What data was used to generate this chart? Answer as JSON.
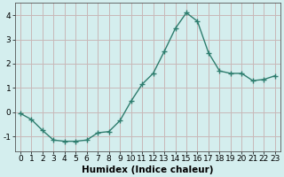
{
  "x": [
    0,
    1,
    2,
    3,
    4,
    5,
    6,
    7,
    8,
    9,
    10,
    11,
    12,
    13,
    14,
    15,
    16,
    17,
    18,
    19,
    20,
    21,
    22,
    23
  ],
  "y": [
    -0.05,
    -0.3,
    -0.75,
    -1.15,
    -1.2,
    -1.2,
    -1.15,
    -0.85,
    -0.8,
    -0.35,
    0.45,
    1.15,
    1.6,
    2.5,
    3.45,
    4.1,
    3.75,
    2.45,
    1.7,
    1.6,
    1.6,
    1.3,
    1.35,
    1.5
  ],
  "line_color": "#2e7d6e",
  "marker": "+",
  "marker_size": 4,
  "linewidth": 1.0,
  "xlabel": "Humidex (Indice chaleur)",
  "xlim": [
    -0.5,
    23.5
  ],
  "ylim": [
    -1.6,
    4.5
  ],
  "yticks": [
    -1,
    0,
    1,
    2,
    3,
    4
  ],
  "xticks": [
    0,
    1,
    2,
    3,
    4,
    5,
    6,
    7,
    8,
    9,
    10,
    11,
    12,
    13,
    14,
    15,
    16,
    17,
    18,
    19,
    20,
    21,
    22,
    23
  ],
  "bg_color": "#d4eeee",
  "grid_color": "#c8b8b8",
  "xlabel_fontsize": 7.5,
  "tick_fontsize": 6.5
}
